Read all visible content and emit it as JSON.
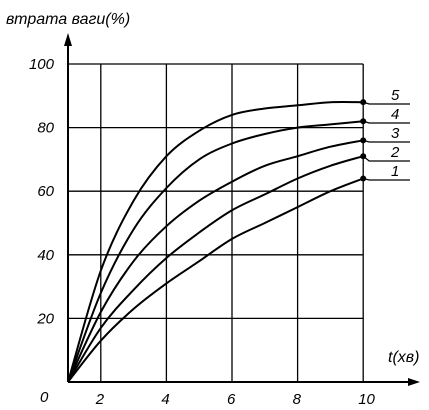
{
  "chart_data": {
    "type": "line",
    "title": "",
    "ylabel": "втрата ваги(%)",
    "xlabel": "t(хв)",
    "origin_label": "0",
    "xlim": [
      1,
      10
    ],
    "ylim": [
      0,
      100
    ],
    "x_ticks": [
      "2",
      "4",
      "6",
      "8",
      "10"
    ],
    "y_ticks": [
      "20",
      "40",
      "60",
      "80",
      "100"
    ],
    "x_grid": [
      2,
      4,
      6,
      8,
      10
    ],
    "y_grid": [
      20,
      40,
      60,
      80,
      100
    ],
    "grid": true,
    "series": [
      {
        "name": "1",
        "x": [
          1,
          2,
          3,
          4,
          5,
          6,
          7,
          8,
          9,
          10
        ],
        "values": [
          0,
          13,
          23,
          31,
          38,
          45,
          50,
          55,
          60,
          64
        ]
      },
      {
        "name": "2",
        "x": [
          1,
          2,
          3,
          4,
          5,
          6,
          7,
          8,
          9,
          10
        ],
        "values": [
          0,
          17,
          29,
          39,
          47,
          54,
          59,
          64,
          68,
          71
        ]
      },
      {
        "name": "3",
        "x": [
          1,
          2,
          3,
          4,
          5,
          6,
          7,
          8,
          9,
          10
        ],
        "values": [
          0,
          22,
          38,
          49,
          57,
          63,
          68,
          71,
          74,
          76
        ]
      },
      {
        "name": "4",
        "x": [
          1,
          2,
          3,
          4,
          5,
          6,
          7,
          8,
          9,
          10
        ],
        "values": [
          0,
          28,
          48,
          61,
          70,
          75,
          78,
          80,
          81,
          82
        ]
      },
      {
        "name": "5",
        "x": [
          1,
          2,
          3,
          4,
          5,
          6,
          7,
          8,
          9,
          10
        ],
        "values": [
          0,
          35,
          57,
          71,
          79,
          84,
          86,
          87,
          88,
          88
        ]
      }
    ]
  }
}
